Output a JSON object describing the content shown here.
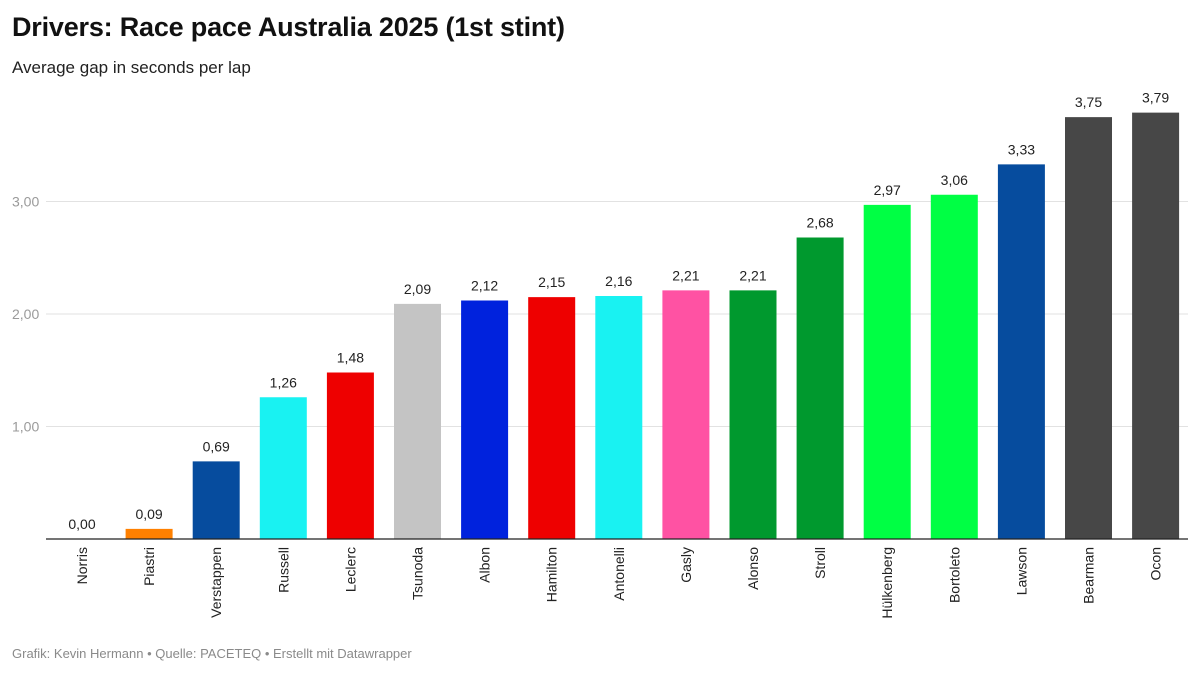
{
  "header": {
    "title": "Drivers: Race pace Australia 2025 (1st stint)",
    "subtitle": "Average gap in seconds per lap"
  },
  "footer": {
    "credit": "Grafik: Kevin Hermann • Quelle: PACETEQ • Erstellt mit Datawrapper"
  },
  "chart_data": {
    "type": "bar",
    "title": "Drivers: Race pace Australia 2025 (1st stint)",
    "subtitle": "Average gap in seconds per lap",
    "xlabel": "",
    "ylabel": "",
    "ylim": [
      0,
      4
    ],
    "yticks": [
      1,
      2,
      3
    ],
    "ytick_labels": [
      "1,00",
      "2,00",
      "3,00"
    ],
    "grid": true,
    "categories": [
      "Norris",
      "Piastri",
      "Verstappen",
      "Russell",
      "Leclerc",
      "Tsunoda",
      "Albon",
      "Hamilton",
      "Antonelli",
      "Gasly",
      "Alonso",
      "Stroll",
      "Hülkenberg",
      "Bortoleto",
      "Lawson",
      "Bearman",
      "Ocon"
    ],
    "values": [
      0.0,
      0.09,
      0.69,
      1.26,
      1.48,
      2.09,
      2.12,
      2.15,
      2.16,
      2.21,
      2.21,
      2.68,
      2.97,
      3.06,
      3.33,
      3.75,
      3.79
    ],
    "value_labels": [
      "0,00",
      "0,09",
      "0,69",
      "1,26",
      "1,48",
      "2,09",
      "2,12",
      "2,15",
      "2,16",
      "2,21",
      "2,21",
      "2,68",
      "2,97",
      "3,06",
      "3,33",
      "3,75",
      "3,79"
    ],
    "colors": [
      "#ff8000",
      "#ff8000",
      "#064c9e",
      "#19f2f2",
      "#ee0000",
      "#c4c4c4",
      "#0022dd",
      "#ee0000",
      "#19f2f2",
      "#ff52a3",
      "#00992e",
      "#00992e",
      "#00ff44",
      "#00ff44",
      "#064c9e",
      "#474747",
      "#474747"
    ]
  }
}
